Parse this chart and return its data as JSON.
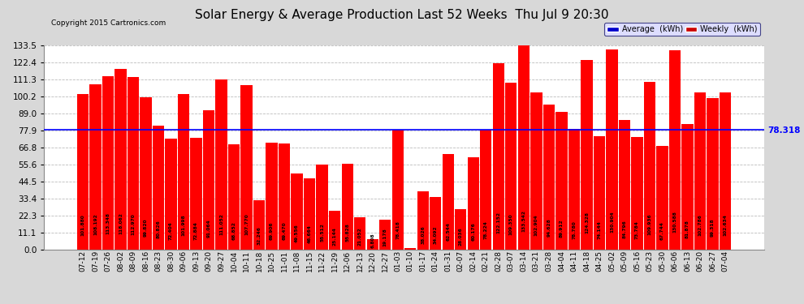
{
  "title": "Solar Energy & Average Production Last 52 Weeks  Thu Jul 9 20:30",
  "copyright": "Copyright 2015 Cartronics.com",
  "bar_color": "#ff0000",
  "average_line_color": "#0000ff",
  "average_value": 78.318,
  "background_color": "#d8d8d8",
  "plot_bg_color": "#ffffff",
  "grid_color": "#bbbbbb",
  "ylim": [
    0,
    133.5
  ],
  "yticks": [
    0.0,
    11.1,
    22.3,
    33.4,
    44.5,
    55.6,
    66.8,
    77.9,
    89.0,
    100.2,
    111.3,
    122.4,
    133.5
  ],
  "categories": [
    "07-12",
    "07-19",
    "07-26",
    "08-02",
    "08-09",
    "08-16",
    "08-23",
    "08-30",
    "09-06",
    "09-13",
    "09-20",
    "09-27",
    "10-04",
    "10-11",
    "10-18",
    "10-25",
    "11-01",
    "11-08",
    "11-15",
    "11-22",
    "11-29",
    "12-06",
    "12-13",
    "12-20",
    "12-27",
    "01-03",
    "01-10",
    "01-17",
    "01-24",
    "01-31",
    "02-07",
    "02-14",
    "02-21",
    "02-28",
    "03-07",
    "03-14",
    "03-21",
    "03-28",
    "04-04",
    "04-11",
    "04-18",
    "04-25",
    "05-02",
    "05-09",
    "05-16",
    "05-23",
    "05-30",
    "06-06",
    "06-13",
    "06-20",
    "06-27",
    "07-04"
  ],
  "values": [
    101.88,
    108.192,
    113.348,
    118.062,
    112.97,
    99.82,
    80.826,
    72.404,
    101.998,
    72.884,
    91.064,
    111.052,
    68.852,
    107.77,
    32.246,
    69.906,
    69.47,
    49.556,
    46.664,
    55.512,
    25.144,
    55.828,
    21.052,
    6.808,
    19.178,
    78.418,
    1.03,
    38.026,
    34.092,
    62.544,
    26.036,
    60.176,
    78.224,
    122.152,
    109.35,
    133.542,
    102.904,
    94.628,
    89.912,
    78.78,
    124.328,
    74.144,
    130.904,
    84.796,
    73.784,
    109.936,
    67.744,
    130.588,
    81.878,
    102.786,
    99.318,
    102.634
  ],
  "right_label": "78.318",
  "legend_avg_color": "#0000cc",
  "legend_weekly_color": "#cc0000",
  "title_fontsize": 11,
  "label_fontsize": 5.0,
  "tick_fontsize": 7.5,
  "xtick_fontsize": 6.5
}
